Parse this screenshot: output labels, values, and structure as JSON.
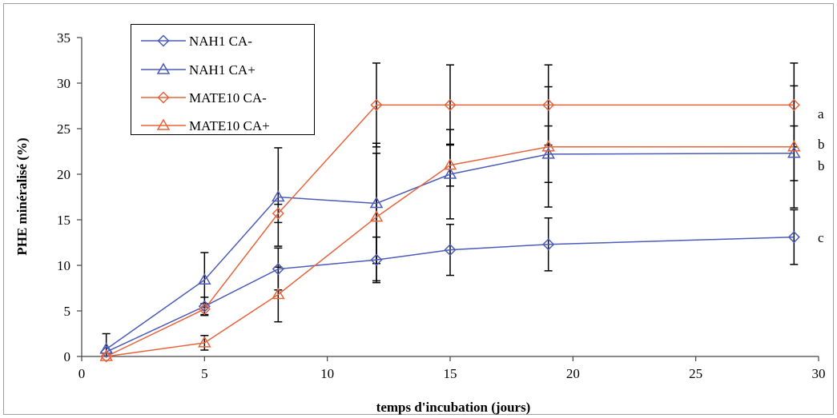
{
  "chart_data": {
    "type": "line",
    "xlabel": "temps d'incubation (jours)",
    "ylabel": "PHE minéralisé (%)",
    "xlim": [
      0,
      30
    ],
    "ylim": [
      0,
      35
    ],
    "xticks": [
      0,
      5,
      10,
      15,
      20,
      25,
      30
    ],
    "yticks": [
      0,
      5,
      10,
      15,
      20,
      25,
      30,
      35
    ],
    "grid": false,
    "legend_position": "top-left",
    "x": [
      1,
      5,
      8,
      12,
      15,
      19,
      29
    ],
    "series": [
      {
        "name": "NAH1 CA-",
        "color": "#4b5bb8",
        "marker": "diamond",
        "values": [
          0.5,
          5.5,
          9.6,
          10.6,
          11.7,
          12.3,
          13.1
        ],
        "errors": [
          0,
          1.0,
          2.3,
          2.5,
          2.8,
          2.9,
          3.0
        ]
      },
      {
        "name": "NAH1 CA+",
        "color": "#4b5bb8",
        "marker": "triangle",
        "values": [
          0.8,
          8.4,
          17.5,
          16.8,
          20.0,
          22.2,
          22.3
        ],
        "errors": [
          1.7,
          3.0,
          5.4,
          6.6,
          4.9,
          3.1,
          3.0
        ]
      },
      {
        "name": "MATE10 CA-",
        "color": "#e6643c",
        "marker": "diamond",
        "values": [
          0.0,
          5.2,
          15.7,
          27.6,
          27.6,
          27.6,
          27.6
        ],
        "errors": [
          0,
          0.6,
          1.0,
          4.6,
          4.4,
          4.4,
          4.6
        ]
      },
      {
        "name": "MATE10 CA+",
        "color": "#e6643c",
        "marker": "triangle",
        "values": [
          0.0,
          1.5,
          6.8,
          15.3,
          21.0,
          23.0,
          23.0
        ],
        "errors": [
          0,
          0.8,
          3.0,
          7.0,
          2.3,
          6.6,
          6.7
        ]
      }
    ],
    "annotations": [
      "a",
      "b",
      "b",
      "c"
    ]
  }
}
